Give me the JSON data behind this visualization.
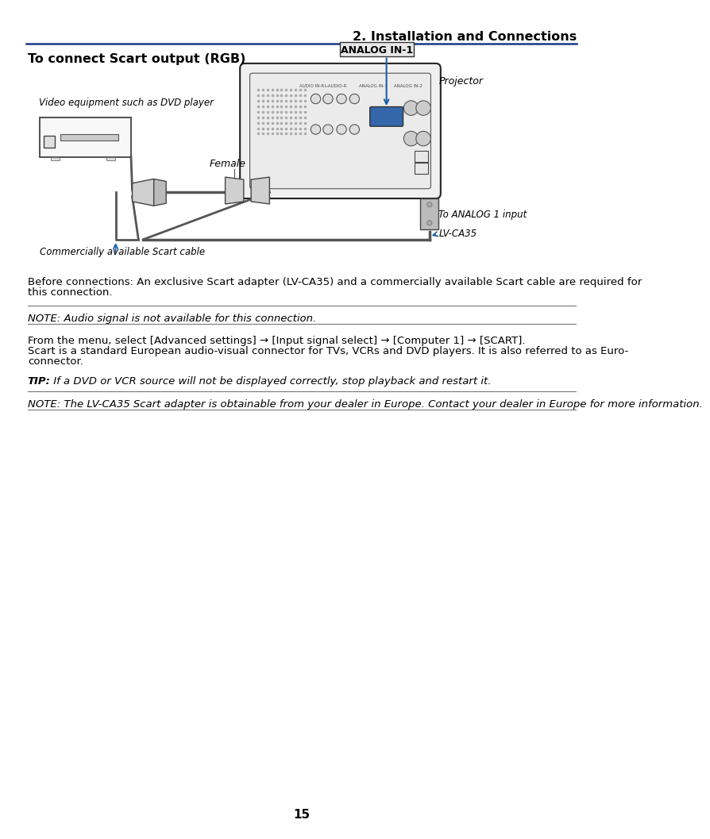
{
  "page_header": "2. Installation and Connections",
  "section_title": "To connect Scart output (RGB)",
  "bg_color": "#ffffff",
  "header_line_color": "#1a3a8a",
  "diagram_label_projector": "Projector",
  "diagram_label_analog": "ANALOG IN-1",
  "diagram_label_female": "Female",
  "diagram_label_video": "Video equipment such as DVD player",
  "diagram_label_scart_cable": "Commercially available Scart cable",
  "diagram_label_analog_input": "To ANALOG 1 input",
  "diagram_label_lv": "LV-CA35",
  "para1_line1": "Before connections: An exclusive Scart adapter (LV-CA35) and a commercially available Scart cable are required for",
  "para1_line2": "this connection.",
  "note1": "NOTE: Audio signal is not available for this connection.",
  "para2_line1": "From the menu, select [Advanced settings] → [Input signal select] → [Computer 1] → [SCART].",
  "para2_line2": "Scart is a standard European audio-visual connector for TVs, VCRs and DVD players. It is also referred to as Euro-",
  "para2_line3": "connector.",
  "tip_bold": "TIP:",
  "tip_italic": " If a DVD or VCR source will not be displayed correctly, stop playback and restart it.",
  "note2": "NOTE: The LV-CA35 Scart adapter is obtainable from your dealer in Europe. Contact your dealer in Europe for more information.",
  "page_number": "15",
  "arrow_color": "#1a5fa8",
  "line_color": "#888888"
}
